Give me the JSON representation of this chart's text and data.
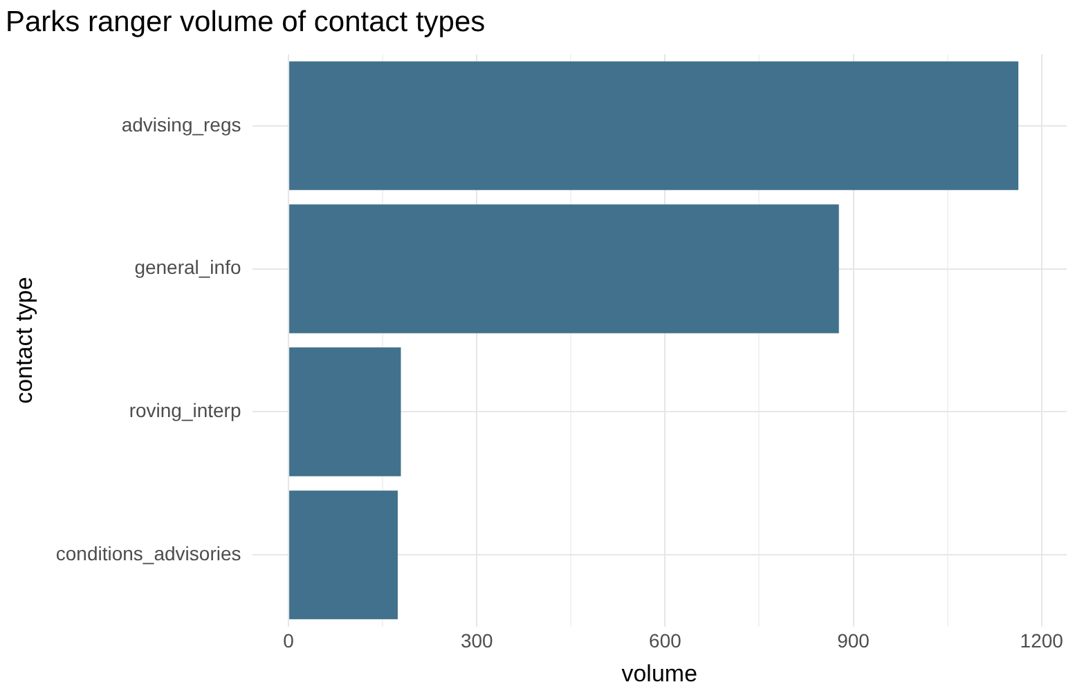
{
  "chart_data": {
    "type": "bar",
    "orientation": "horizontal",
    "title": "Parks ranger volume of contact types",
    "xlabel": "volume",
    "ylabel": "contact type",
    "categories": [
      "advising_regs",
      "general_info",
      "roving_interp",
      "conditions_advisories"
    ],
    "values": [
      1163,
      877,
      179,
      174
    ],
    "color": "#41718c",
    "xlim": [
      -58,
      1240
    ],
    "xticks": [
      0,
      {
        "value": 150,
        "label": null
      },
      300,
      {
        "value": 450,
        "label": null
      },
      600,
      {
        "value": 750,
        "label": null
      },
      900,
      {
        "value": 1050,
        "label": null
      },
      1200
    ],
    "grid": true
  }
}
